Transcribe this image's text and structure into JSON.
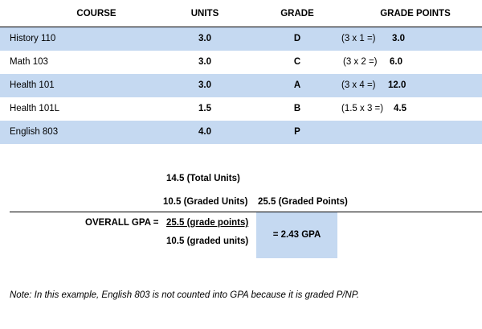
{
  "headers": {
    "course": "COURSE",
    "units": "UNITS",
    "grade": "GRADE",
    "grade_points": "GRADE POINTS"
  },
  "rows": [
    {
      "course": "History 110",
      "units": "3.0",
      "grade": "D",
      "calc": "(3 x 1 =)",
      "points": "3.0"
    },
    {
      "course": "Math 103",
      "units": "3.0",
      "grade": "C",
      "calc": "(3 x 2 =)",
      "points": "6.0"
    },
    {
      "course": "Health 101",
      "units": "3.0",
      "grade": "A",
      "calc": "(3 x 4 =)",
      "points": "12.0"
    },
    {
      "course": "Health 101L",
      "units": "1.5",
      "grade": "B",
      "calc": "(1.5 x 3 =)",
      "points": "4.5"
    },
    {
      "course": "English 803",
      "units": "4.0",
      "grade": "P",
      "calc": "",
      "points": ""
    }
  ],
  "summary": {
    "total_units": "14.5 (Total Units)",
    "graded_units": "10.5 (Graded Units)",
    "graded_points": "25.5 (Graded Points)"
  },
  "gpa": {
    "label": "OVERALL GPA =",
    "numerator": "25.5 (grade points)",
    "denominator": "10.5 (graded units)",
    "result": "= 2.43 GPA"
  },
  "note": "Note: In this example, English 803 is not counted into GPA because it is graded P/NP.",
  "colors": {
    "row_shade": "#c5d9f1"
  }
}
